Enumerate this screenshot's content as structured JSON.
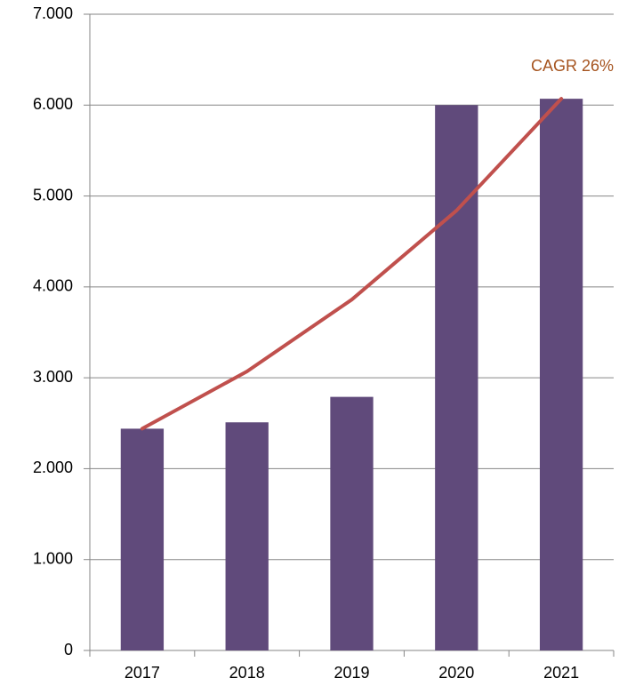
{
  "chart_data": {
    "type": "bar",
    "categories": [
      "2017",
      "2018",
      "2019",
      "2020",
      "2021"
    ],
    "series": [
      {
        "type": "bar",
        "color": "#604a7b",
        "values": [
          2440,
          2510,
          2790,
          6000,
          6070
        ]
      },
      {
        "type": "line",
        "color": "#c0504d",
        "values": [
          2440,
          3070,
          3860,
          4840,
          6070
        ]
      }
    ],
    "annotation": {
      "text": "CAGR 26%",
      "color": "#a5531e"
    },
    "ylim": [
      0,
      7000
    ],
    "yticks": [
      0,
      {
        "value": 1000,
        "label": "1.000"
      },
      {
        "value": 2000,
        "label": "2.000"
      },
      {
        "value": 3000,
        "label": "3.000"
      },
      {
        "value": 4000,
        "label": "4.000"
      },
      {
        "value": 5000,
        "label": "5.000"
      },
      {
        "value": 6000,
        "label": "6.000"
      },
      {
        "value": 7000,
        "label": "7.000"
      }
    ],
    "grid": true
  }
}
